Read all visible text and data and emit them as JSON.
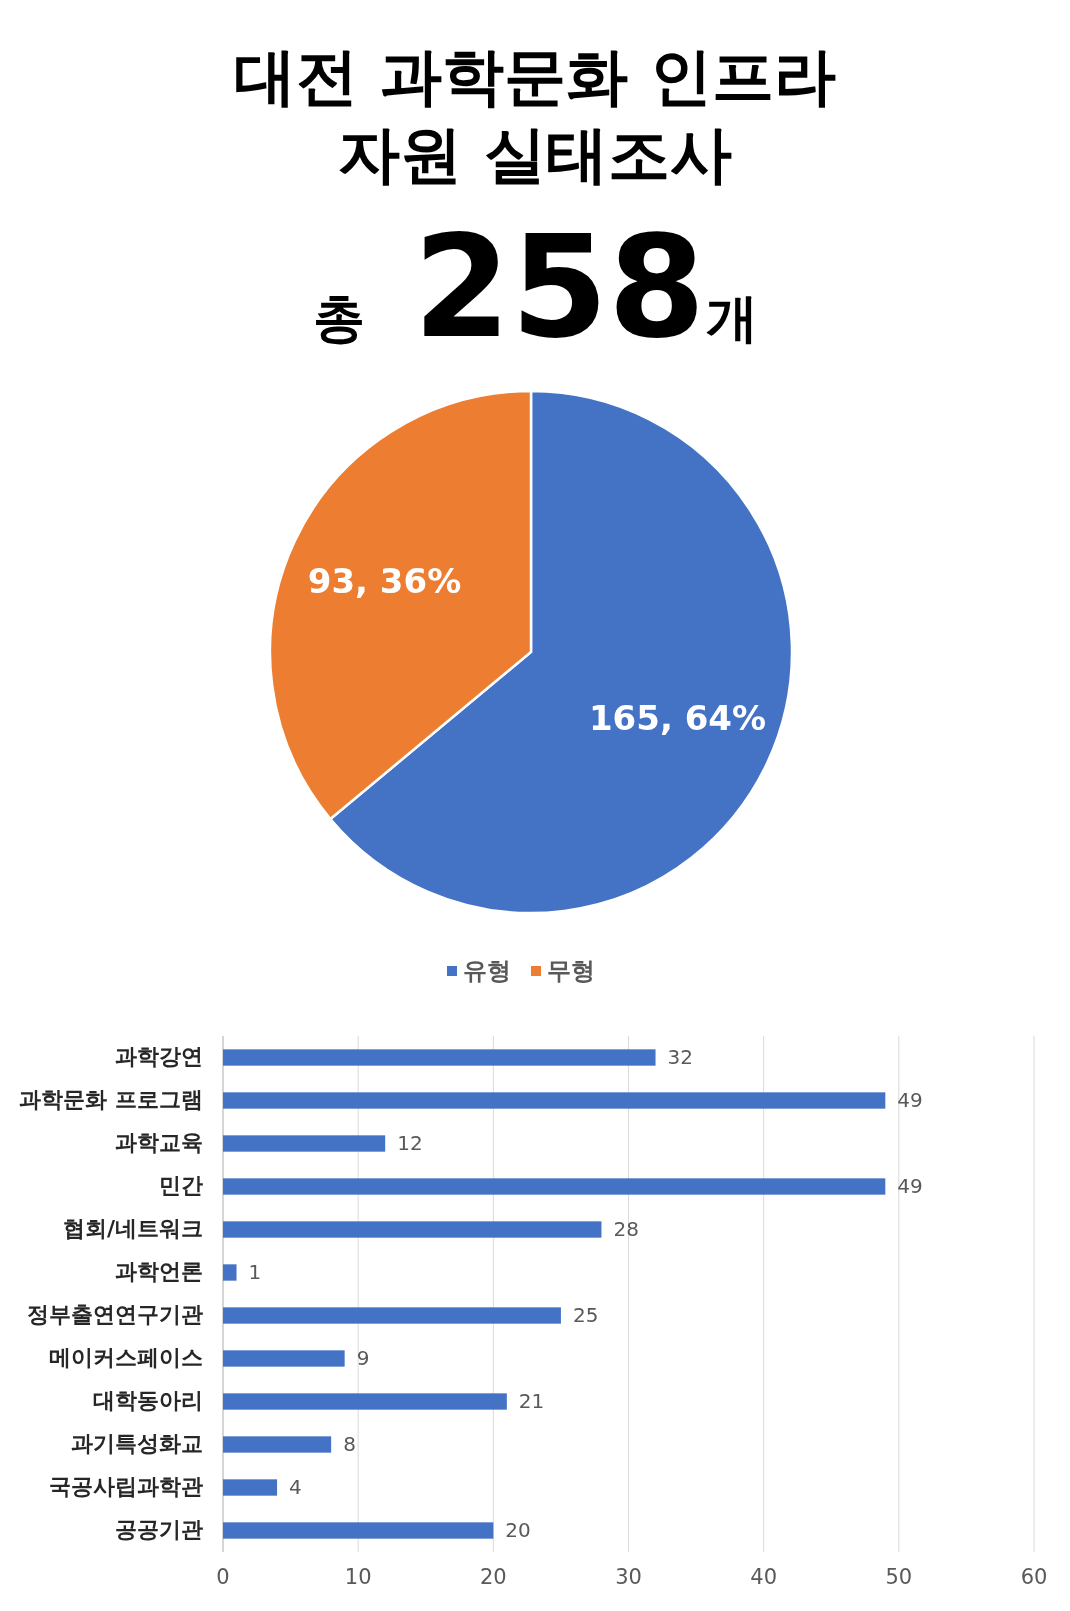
{
  "chart_data": [
    {
      "type": "pie",
      "title": "대전 과학문화 인프라\n자원 실태조사",
      "subtitle": "총 258개",
      "categories": [
        "유형",
        "무형"
      ],
      "values": [
        165,
        93
      ],
      "colors": [
        "#4472c4",
        "#ed7d31"
      ],
      "value_labels": [
        "165, 64%",
        "93, 36%"
      ],
      "legend": "bottom"
    },
    {
      "type": "bar",
      "orientation": "horizontal",
      "categories": [
        "과학강연",
        "과학문화 프로그램",
        "과학교육",
        "민간",
        "협회/네트워크",
        "과학언론",
        "정부출연연구기관",
        "메이커스페이스",
        "대학동아리",
        "과기특성화교",
        "국공사립과학관",
        "공공기관"
      ],
      "series": [
        {
          "color": "#4472c4",
          "values": [
            32,
            49,
            12,
            49,
            28,
            1,
            25,
            9,
            21,
            8,
            4,
            20
          ]
        }
      ],
      "xlim": [
        0,
        60
      ],
      "xticks": [
        0,
        10,
        20,
        30,
        40,
        50,
        60
      ],
      "grid": "x",
      "data_labels": true
    }
  ]
}
